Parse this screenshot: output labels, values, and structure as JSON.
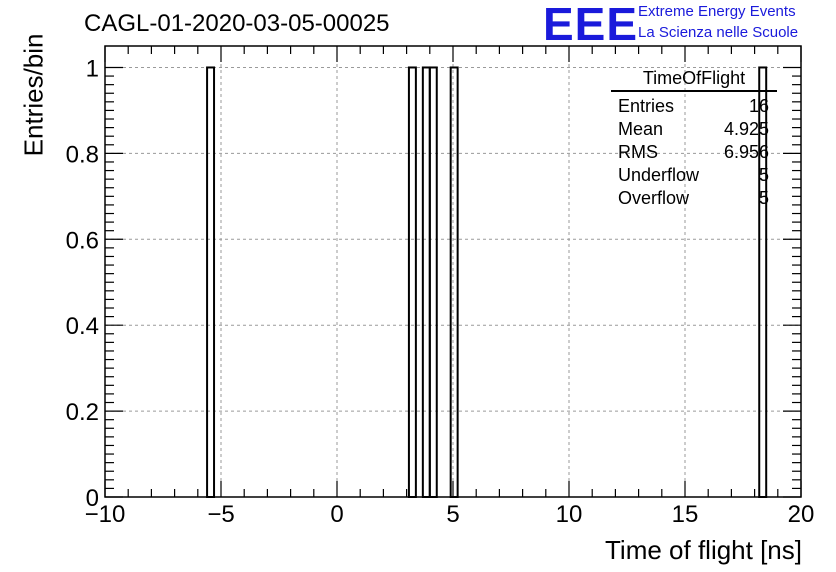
{
  "header": {
    "title": "CAGL-01-2020-03-05-00025",
    "brand_logo": "EEE",
    "brand_line1": "Extreme Energy Events",
    "brand_line2": "La Scienza nelle Scuole",
    "brand_color": "#1a1adb"
  },
  "stats_box": {
    "title": "TimeOfFlight",
    "rows": [
      {
        "label": "Entries",
        "value": "16"
      },
      {
        "label": "Mean",
        "value": "4.925"
      },
      {
        "label": "RMS",
        "value": "6.956"
      },
      {
        "label": "Underflow",
        "value": "5"
      },
      {
        "label": "Overflow",
        "value": "5"
      }
    ]
  },
  "chart_data": {
    "type": "bar",
    "style": "histogram-step",
    "xlabel": "Time of flight [ns]",
    "ylabel": "Entries/bin",
    "xlim": [
      -10,
      20
    ],
    "ylim": [
      0,
      1.05
    ],
    "xticks": [
      -10,
      -5,
      0,
      5,
      10,
      15,
      20
    ],
    "xtick_labels": [
      "−10",
      "−5",
      "0",
      "5",
      "10",
      "15",
      "20"
    ],
    "yticks": [
      0,
      0.2,
      0.4,
      0.6,
      0.8,
      1
    ],
    "ytick_labels": [
      "0",
      "0.2",
      "0.4",
      "0.6",
      "0.8",
      "1"
    ],
    "grid": true,
    "bin_width": 0.3,
    "bins": [
      {
        "x_low": -5.6,
        "value": 1
      },
      {
        "x_low": 3.1,
        "value": 1
      },
      {
        "x_low": 3.7,
        "value": 1
      },
      {
        "x_low": 4.0,
        "value": 1
      },
      {
        "x_low": 4.9,
        "value": 1
      },
      {
        "x_low": 18.2,
        "value": 1
      }
    ]
  }
}
